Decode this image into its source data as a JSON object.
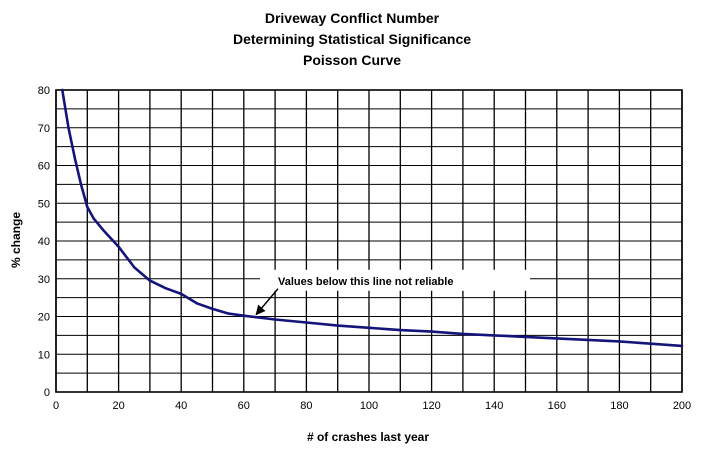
{
  "chart_data": {
    "type": "line",
    "title": [
      "Driveway Conflict Number",
      "Determining Statistical Significance",
      "Poisson Curve"
    ],
    "xlabel": "# of crashes last year",
    "ylabel": "% change",
    "xlim": [
      0,
      200
    ],
    "ylim": [
      0,
      80
    ],
    "x_ticks": [
      0,
      20,
      40,
      60,
      80,
      100,
      120,
      140,
      160,
      180,
      200
    ],
    "y_ticks": [
      0,
      10,
      20,
      30,
      40,
      50,
      60,
      70,
      80
    ],
    "x_minor_step": 10,
    "y_minor_step": 5,
    "grid": true,
    "legend": "none",
    "line_color": "#14147a",
    "series": [
      {
        "x": [
          2,
          4,
          6,
          8,
          10,
          12,
          15,
          20,
          25,
          30,
          35,
          40,
          45,
          50,
          55,
          60,
          70,
          80,
          90,
          100,
          110,
          120,
          130,
          140,
          150,
          160,
          170,
          180,
          190,
          200
        ],
        "values": [
          80,
          70,
          62,
          55,
          49,
          46,
          43,
          38.5,
          33,
          29.5,
          27.5,
          26,
          23.5,
          22,
          20.8,
          20.2,
          19.2,
          18.4,
          17.6,
          17,
          16.4,
          16,
          15.4,
          15,
          14.6,
          14.2,
          13.8,
          13.4,
          12.8,
          12.2
        ]
      }
    ],
    "annotation": {
      "text": "Values below this line not reliable",
      "x": 63,
      "y": 20,
      "reference_line_y": 30
    }
  }
}
